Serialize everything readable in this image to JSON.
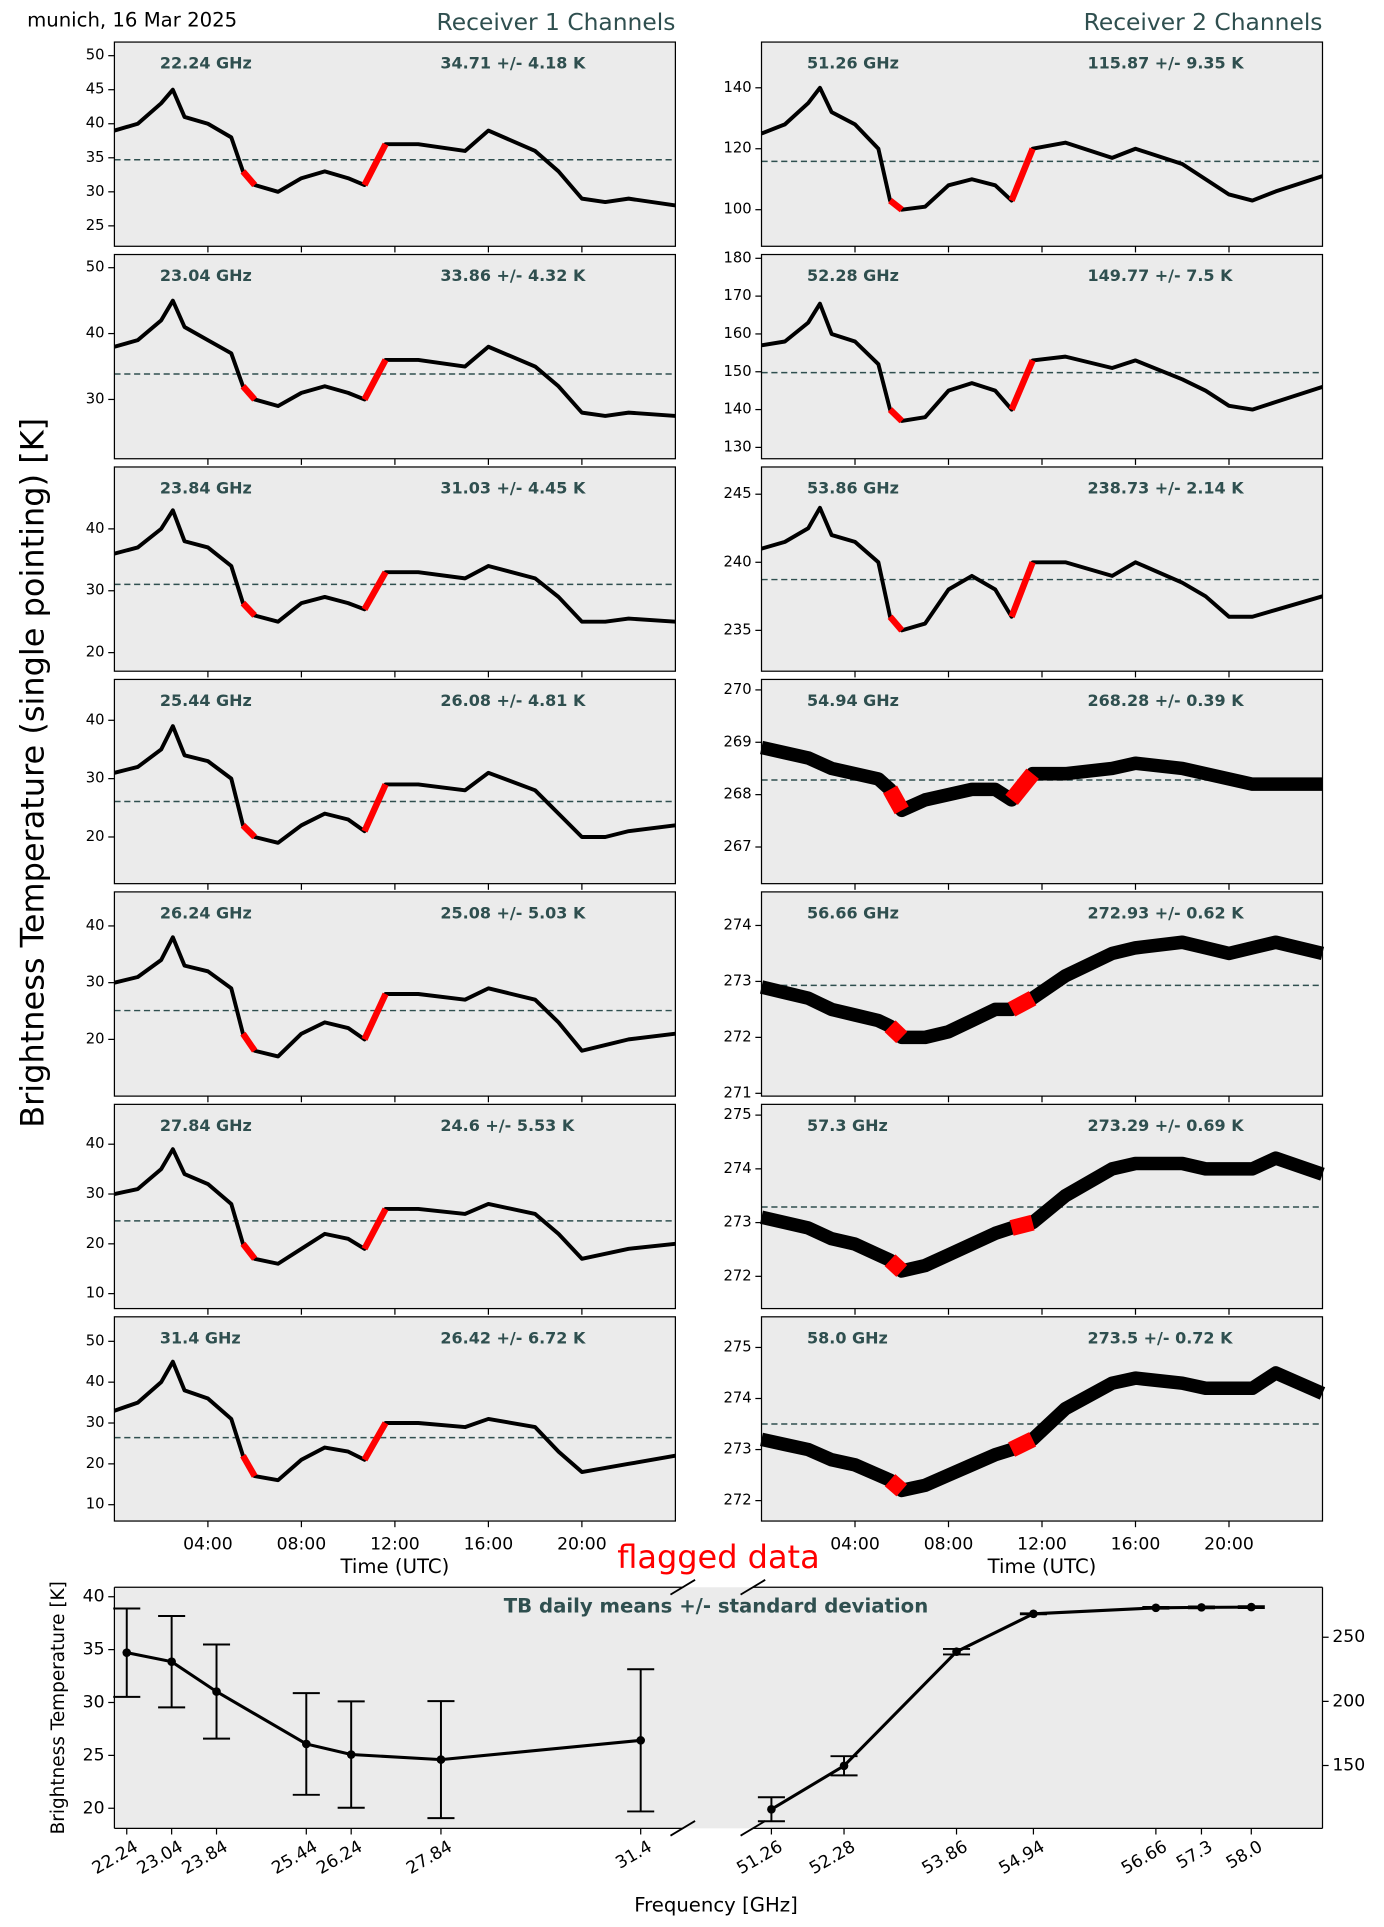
{
  "header": "munich, 16 Mar 2025",
  "ylabel": "Brightness Temperature (single pointing) [K]",
  "flag_label": "flagged data",
  "flagged": [
    [
      5.5,
      6.0
    ],
    [
      10.7,
      11.6
    ]
  ],
  "chart_data": [
    {
      "type": "line",
      "title": "Receiver 1 Channels",
      "xlabel": "Time (UTC)",
      "x": [
        0,
        1,
        2,
        2.5,
        3,
        4,
        5,
        5.5,
        6,
        7,
        8,
        9,
        10,
        10.7,
        11.6,
        13,
        15,
        16,
        18,
        19,
        20,
        21,
        22,
        24
      ],
      "xlim": [
        0,
        24
      ],
      "xticks": [
        {
          "value": 4,
          "label": "04:00"
        },
        {
          "value": 8,
          "label": "08:00"
        },
        {
          "value": 12,
          "label": "12:00"
        },
        {
          "value": 16,
          "label": "16:00"
        },
        {
          "value": 20,
          "label": "20:00"
        }
      ],
      "panels": [
        {
          "label": "22.24 GHz",
          "stat": "34.71 +/- 4.18 K",
          "ylim": [
            22,
            52
          ],
          "yticks": [
            25,
            30,
            35,
            40,
            45,
            50
          ],
          "values": [
            39,
            40,
            43,
            45,
            41,
            40,
            38,
            33,
            31,
            30,
            32,
            33,
            32,
            31,
            37,
            37,
            36,
            39,
            36,
            33,
            29,
            28.5,
            29,
            28
          ]
        },
        {
          "label": "23.04 GHz",
          "stat": "33.86 +/- 4.32 K",
          "ylim": [
            21,
            52
          ],
          "yticks": [
            30,
            40,
            50
          ],
          "values": [
            38,
            39,
            42,
            45,
            41,
            39,
            37,
            32,
            30,
            29,
            31,
            32,
            31,
            30,
            36,
            36,
            35,
            38,
            35,
            32,
            28,
            27.5,
            28,
            27.5
          ]
        },
        {
          "label": "23.84 GHz",
          "stat": "31.03 +/- 4.45 K",
          "ylim": [
            17,
            50
          ],
          "yticks": [
            20,
            30,
            40
          ],
          "values": [
            36,
            37,
            40,
            43,
            38,
            37,
            34,
            28,
            26,
            25,
            28,
            29,
            28,
            27,
            33,
            33,
            32,
            34,
            32,
            29,
            25,
            25,
            25.5,
            25
          ]
        },
        {
          "label": "25.44 GHz",
          "stat": "26.08 +/- 4.81 K",
          "ylim": [
            12,
            47
          ],
          "yticks": [
            20,
            30,
            40
          ],
          "values": [
            31,
            32,
            35,
            39,
            34,
            33,
            30,
            22,
            20,
            19,
            22,
            24,
            23,
            21,
            29,
            29,
            28,
            31,
            28,
            24,
            20,
            20,
            21,
            22
          ]
        },
        {
          "label": "26.24 GHz",
          "stat": "25.08 +/- 5.03 K",
          "ylim": [
            10,
            46
          ],
          "yticks": [
            20,
            30,
            40
          ],
          "values": [
            30,
            31,
            34,
            38,
            33,
            32,
            29,
            21,
            18,
            17,
            21,
            23,
            22,
            20,
            28,
            28,
            27,
            29,
            27,
            23,
            18,
            19,
            20,
            21
          ]
        },
        {
          "label": "27.84 GHz",
          "stat": "24.6 +/- 5.53 K",
          "ylim": [
            7,
            48
          ],
          "yticks": [
            10,
            20,
            30,
            40
          ],
          "values": [
            30,
            31,
            35,
            39,
            34,
            32,
            28,
            20,
            17,
            16,
            19,
            22,
            21,
            19,
            27,
            27,
            26,
            28,
            26,
            22,
            17,
            18,
            19,
            20
          ]
        },
        {
          "label": "31.4 GHz",
          "stat": "26.42 +/- 6.72 K",
          "ylim": [
            6,
            56
          ],
          "yticks": [
            10,
            20,
            30,
            40,
            50
          ],
          "values": [
            33,
            35,
            40,
            45,
            38,
            36,
            31,
            22,
            17,
            16,
            21,
            24,
            23,
            21,
            30,
            30,
            29,
            31,
            29,
            23,
            18,
            19,
            20,
            22
          ]
        }
      ]
    },
    {
      "type": "line",
      "title": "Receiver 2 Channels",
      "xlabel": "Time (UTC)",
      "x": [
        0,
        1,
        2,
        2.5,
        3,
        4,
        5,
        5.5,
        6,
        7,
        8,
        9,
        10,
        10.7,
        11.6,
        13,
        15,
        16,
        18,
        19,
        20,
        21,
        22,
        24
      ],
      "xlim": [
        0,
        24
      ],
      "xticks": [
        {
          "value": 4,
          "label": "04:00"
        },
        {
          "value": 8,
          "label": "08:00"
        },
        {
          "value": 12,
          "label": "12:00"
        },
        {
          "value": 16,
          "label": "16:00"
        },
        {
          "value": 20,
          "label": "20:00"
        }
      ],
      "panels": [
        {
          "label": "51.26 GHz",
          "stat": "115.87 +/- 9.35 K",
          "ylim": [
            88,
            155
          ],
          "yticks": [
            100,
            120,
            140
          ],
          "values": [
            125,
            128,
            135,
            140,
            132,
            128,
            120,
            103,
            100,
            101,
            108,
            110,
            108,
            103,
            120,
            122,
            117,
            120,
            115,
            110,
            105,
            103,
            106,
            111
          ]
        },
        {
          "label": "52.28 GHz",
          "stat": "149.77 +/- 7.5 K",
          "ylim": [
            127,
            181
          ],
          "yticks": [
            130,
            140,
            150,
            160,
            170,
            180
          ],
          "values": [
            157,
            158,
            163,
            168,
            160,
            158,
            152,
            140,
            137,
            138,
            145,
            147,
            145,
            140,
            153,
            154,
            151,
            153,
            148,
            145,
            141,
            140,
            142,
            146
          ]
        },
        {
          "label": "53.86 GHz",
          "stat": "238.73 +/- 2.14 K",
          "ylim": [
            232,
            247
          ],
          "yticks": [
            235,
            240,
            245
          ],
          "values": [
            241,
            241.5,
            242.5,
            244,
            242,
            241.5,
            240,
            236,
            235,
            235.5,
            238,
            239,
            238,
            236,
            240,
            240,
            239,
            240,
            238.5,
            237.5,
            236,
            236,
            236.5,
            237.5
          ]
        },
        {
          "label": "54.94 GHz",
          "stat": "268.28 +/- 0.39 K",
          "ylim": [
            266.3,
            270.2
          ],
          "yticks": [
            267,
            268,
            269,
            270
          ],
          "markers": "band",
          "values": [
            268.9,
            268.8,
            268.7,
            268.6,
            268.5,
            268.4,
            268.3,
            268.1,
            267.7,
            267.9,
            268.0,
            268.1,
            268.1,
            267.9,
            268.4,
            268.4,
            268.5,
            268.6,
            268.5,
            268.4,
            268.3,
            268.2,
            268.2,
            268.2
          ]
        },
        {
          "label": "56.66 GHz",
          "stat": "272.93 +/- 0.62 K",
          "ylim": [
            270.95,
            274.6
          ],
          "yticks": [
            271,
            272,
            273,
            274
          ],
          "markers": "band",
          "values": [
            272.9,
            272.8,
            272.7,
            272.6,
            272.5,
            272.4,
            272.3,
            272.2,
            272.0,
            272.0,
            272.1,
            272.3,
            272.5,
            272.5,
            272.7,
            273.1,
            273.5,
            273.6,
            273.7,
            273.6,
            273.5,
            273.6,
            273.7,
            273.5
          ]
        },
        {
          "label": "57.3 GHz",
          "stat": "273.29 +/- 0.69 K",
          "ylim": [
            271.4,
            275.2
          ],
          "yticks": [
            272,
            273,
            274,
            275
          ],
          "markers": "band",
          "values": [
            273.1,
            273.0,
            272.9,
            272.8,
            272.7,
            272.6,
            272.4,
            272.3,
            272.1,
            272.2,
            272.4,
            272.6,
            272.8,
            272.9,
            273.0,
            273.5,
            274.0,
            274.1,
            274.1,
            274.0,
            274.0,
            274.0,
            274.2,
            273.9
          ]
        },
        {
          "label": "58.0 GHz",
          "stat": "273.5 +/- 0.72 K",
          "ylim": [
            271.6,
            275.6
          ],
          "yticks": [
            272,
            273,
            274,
            275
          ],
          "markers": "band",
          "values": [
            273.2,
            273.1,
            273.0,
            272.9,
            272.8,
            272.7,
            272.5,
            272.4,
            272.2,
            272.3,
            272.5,
            272.7,
            272.9,
            273.0,
            273.2,
            273.8,
            274.3,
            274.4,
            274.3,
            274.2,
            274.2,
            274.2,
            274.5,
            274.1
          ]
        }
      ]
    },
    {
      "type": "errorbar",
      "title": "TB daily means +/- standard deviation",
      "xlabel": "Frequency [GHz]",
      "ylabel": "Brightness Temperature [K]",
      "ylim": [
        18.1,
        40.9
      ],
      "yticks": [
        20,
        25,
        30,
        35,
        40
      ],
      "y2lim": [
        101,
        289
      ],
      "y2ticks": [
        150,
        200,
        250
      ],
      "segments": [
        {
          "xlim": [
            22.02,
            32.15
          ],
          "x": [
            22.24,
            23.04,
            23.84,
            25.44,
            26.24,
            27.84,
            31.4
          ],
          "xticks": [
            22.24,
            23.04,
            23.84,
            25.44,
            26.24,
            27.84,
            31.4
          ],
          "values": [
            34.71,
            33.86,
            31.03,
            26.08,
            25.08,
            24.6,
            26.42
          ],
          "errors": [
            4.18,
            4.32,
            4.45,
            4.81,
            5.03,
            5.53,
            6.72
          ]
        },
        {
          "xlim": [
            51.0,
            59.0
          ],
          "axis": "y2",
          "x": [
            51.26,
            52.28,
            53.86,
            54.94,
            56.66,
            57.3,
            58.0
          ],
          "xticks": [
            51.26,
            52.28,
            53.86,
            54.94,
            56.66,
            57.3,
            {
              "value": 58,
              "label": "58.0"
            }
          ],
          "values": [
            115.87,
            149.77,
            238.73,
            268.28,
            272.93,
            273.29,
            273.5
          ],
          "errors": [
            9.35,
            7.5,
            2.14,
            0.39,
            0.62,
            0.69,
            0.72
          ]
        }
      ]
    }
  ]
}
